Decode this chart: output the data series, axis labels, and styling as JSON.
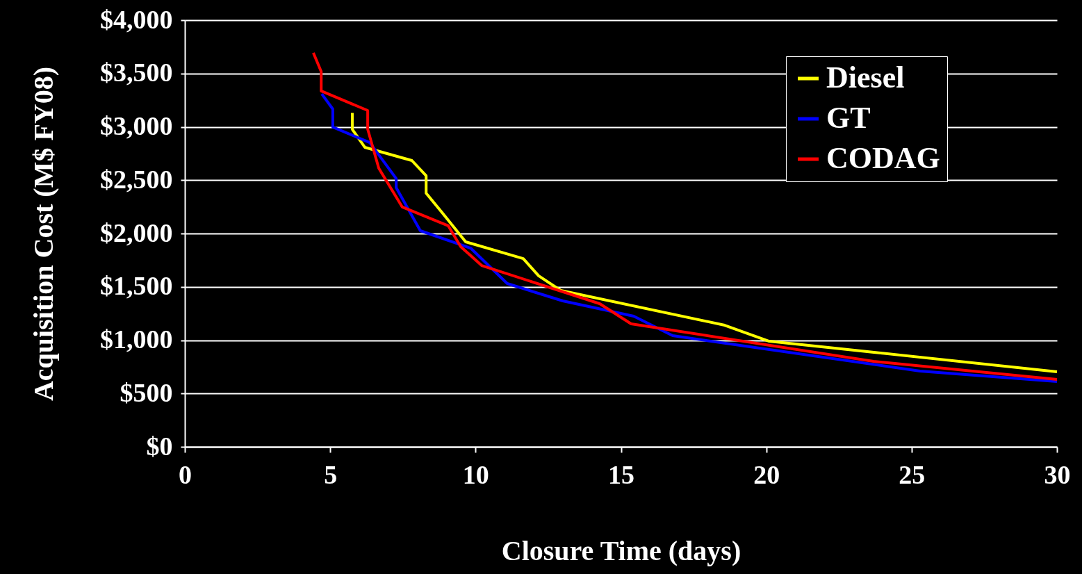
{
  "chart_data": {
    "type": "line",
    "xlabel": "Closure Time (days)",
    "ylabel": "Acquisition Cost (M$ FY08)",
    "xlim": [
      0,
      30
    ],
    "xticks": [
      0,
      5,
      10,
      15,
      20,
      25,
      30
    ],
    "ylim": [
      0,
      4000
    ],
    "yticks": [
      {
        "value": 0,
        "label": "$0"
      },
      {
        "value": 500,
        "label": "$500"
      },
      {
        "value": 1000,
        "label": "$1,000"
      },
      {
        "value": 1500,
        "label": "$1,500"
      },
      {
        "value": 2000,
        "label": "$2,000"
      },
      {
        "value": 2500,
        "label": "$2,500"
      },
      {
        "value": 3000,
        "label": "$3,000"
      },
      {
        "value": 3500,
        "label": "$3,500"
      },
      {
        "value": 4000,
        "label": "$4,000"
      }
    ],
    "grid": "y",
    "legend": "top right",
    "marker": "none",
    "line_style": "solid",
    "series": [
      {
        "name": "Diesel",
        "color": "#ffff00",
        "x": [
          5.76,
          5.76,
          6.19,
          7.81,
          8.3,
          8.3,
          8.87,
          9.66,
          11.64,
          12.17,
          12.93,
          18.57,
          20.1,
          30
        ],
        "values": [
          3130,
          2977,
          2808,
          2684,
          2541,
          2378,
          2189,
          1922,
          1765,
          1603,
          1466,
          1140,
          990,
          704
        ]
      },
      {
        "name": "GT",
        "color": "#0000ff",
        "x": [
          4.71,
          5.09,
          5.09,
          6.36,
          7.27,
          7.27,
          8.1,
          9.83,
          11.09,
          13.0,
          15.44,
          16.78,
          25.29,
          30
        ],
        "values": [
          3309,
          3166,
          2997,
          2853,
          2515,
          2430,
          2026,
          1863,
          1531,
          1368,
          1225,
          1042,
          710,
          612
        ]
      },
      {
        "name": "CODAG",
        "color": "#ff0000",
        "x": [
          4.42,
          4.69,
          4.69,
          6.29,
          6.29,
          6.67,
          7.48,
          9.06,
          9.49,
          10.21,
          14.27,
          15.35,
          23.69,
          30
        ],
        "values": [
          3694,
          3518,
          3336,
          3153,
          2977,
          2612,
          2248,
          2072,
          1876,
          1700,
          1342,
          1153,
          801,
          632
        ]
      }
    ]
  }
}
